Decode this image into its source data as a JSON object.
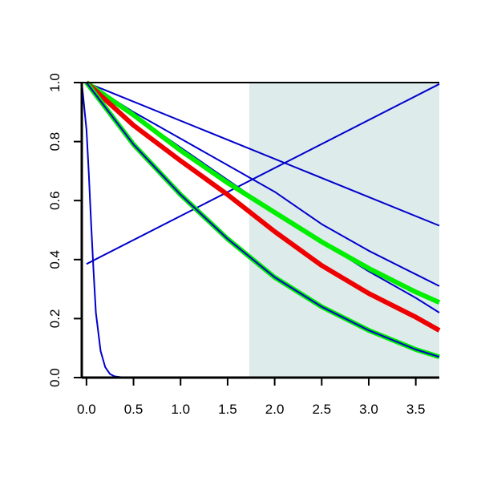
{
  "chart_data": {
    "type": "line",
    "title": "",
    "xlabel": "",
    "ylabel": "",
    "xlim": [
      -0.05,
      3.75
    ],
    "ylim": [
      0.0,
      1.0
    ],
    "grid": false,
    "x_ticks": [
      "0.0",
      "0.5",
      "1.0",
      "1.5",
      "2.0",
      "2.5",
      "3.0",
      "3.5"
    ],
    "x_tick_values": [
      0,
      0.5,
      1.0,
      1.5,
      2.0,
      2.5,
      3.0,
      3.5
    ],
    "y_ticks": [
      "0.0",
      "0.2",
      "0.4",
      "0.6",
      "0.8",
      "1.0"
    ],
    "y_tick_values": [
      0,
      0.2,
      0.4,
      0.6,
      0.8,
      1.0
    ],
    "shaded_region": {
      "x_from": 1.73,
      "x_to": 3.75,
      "color": "#deebeb"
    },
    "series": [
      {
        "color": "#0000cc",
        "width": "thin",
        "x": [
          0,
          3.75
        ],
        "y": [
          0.385,
          0.995
        ]
      },
      {
        "color": "#0000cc",
        "width": "thin",
        "x": [
          0,
          3.75
        ],
        "y": [
          1.0,
          0.515
        ]
      },
      {
        "color": "#0000cc",
        "width": "thin",
        "x": [
          0,
          0.5,
          1.0,
          1.5,
          2.0,
          2.5,
          3.0,
          3.5,
          3.75
        ],
        "y": [
          1.0,
          0.9,
          0.81,
          0.72,
          0.63,
          0.52,
          0.43,
          0.35,
          0.31
        ]
      },
      {
        "color": "#0000cc",
        "width": "thin",
        "x": [
          0,
          0.5,
          1.0,
          1.5,
          2.0,
          2.5,
          3.0,
          3.5,
          3.75
        ],
        "y": [
          1.0,
          0.89,
          0.78,
          0.67,
          0.56,
          0.46,
          0.36,
          0.27,
          0.22
        ]
      },
      {
        "color": "#00ee00",
        "width": "thick",
        "x": [
          0,
          0.5,
          1.0,
          1.5,
          2.0,
          2.5,
          3.0,
          3.5,
          3.75
        ],
        "y": [
          1.0,
          0.89,
          0.77,
          0.66,
          0.56,
          0.46,
          0.37,
          0.29,
          0.255
        ]
      },
      {
        "color": "#ee0000",
        "width": "thick",
        "x": [
          0,
          0.5,
          1.0,
          1.5,
          2.0,
          2.5,
          3.0,
          3.5,
          3.75
        ],
        "y": [
          1.0,
          0.855,
          0.735,
          0.62,
          0.495,
          0.38,
          0.285,
          0.205,
          0.16
        ]
      },
      {
        "color": "#00ee00",
        "width": "thick",
        "x": [
          0,
          0.5,
          1.0,
          1.5,
          2.0,
          2.5,
          3.0,
          3.5,
          3.75
        ],
        "y": [
          1.0,
          0.79,
          0.62,
          0.47,
          0.34,
          0.24,
          0.16,
          0.095,
          0.07
        ]
      },
      {
        "color": "#0000cc",
        "width": "thin",
        "x": [
          0,
          0.5,
          1.0,
          1.5,
          2.0,
          2.5,
          3.0,
          3.5,
          3.75
        ],
        "y": [
          1.0,
          0.79,
          0.62,
          0.47,
          0.34,
          0.24,
          0.16,
          0.095,
          0.07
        ]
      },
      {
        "color": "#0000cc",
        "width": "thin",
        "x": [
          -0.05,
          0.0,
          0.025,
          0.05,
          0.075,
          0.1,
          0.15,
          0.2,
          0.25,
          0.3,
          0.4,
          3.75
        ],
        "y": [
          1.0,
          0.84,
          0.69,
          0.52,
          0.36,
          0.22,
          0.09,
          0.035,
          0.012,
          0.004,
          0.0,
          0.0
        ]
      }
    ]
  }
}
